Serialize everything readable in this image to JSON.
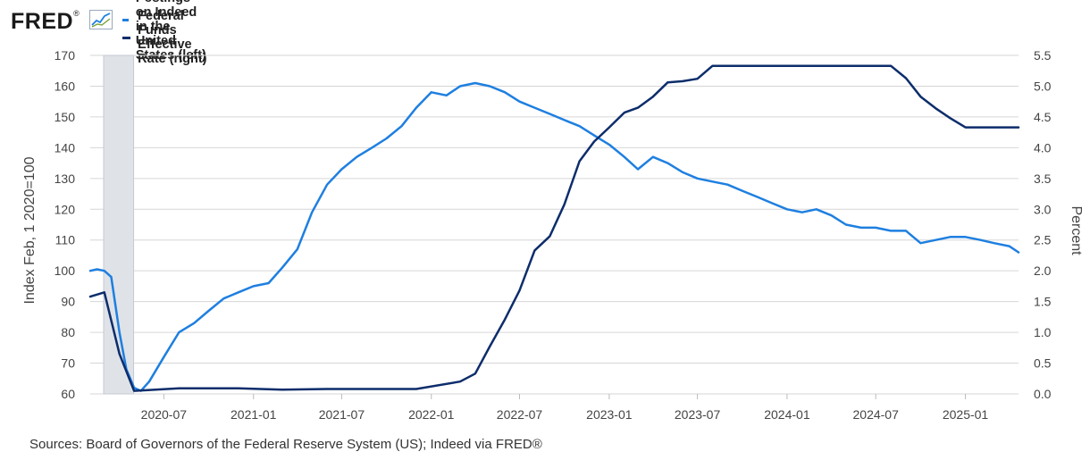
{
  "brand": {
    "logo_text": "FRED",
    "logo_mark": "®"
  },
  "legend": [
    {
      "label": "Job Postings on Indeed in the United States (left)",
      "color": "#1e7fe0"
    },
    {
      "label": "Federal Funds Effective Rate (right)",
      "color": "#0d2d6b"
    }
  ],
  "footer": {
    "sources": "Sources: Board of Governors of the Federal Reserve System (US); Indeed via FRED®"
  },
  "chart_data": {
    "type": "line",
    "x_tick_labels": [
      "2020-07",
      "2021-01",
      "2021-07",
      "2022-01",
      "2022-07",
      "2023-01",
      "2023-07",
      "2024-01",
      "2024-07",
      "2025-01"
    ],
    "x_range": [
      "2020-02-01",
      "2025-04-20"
    ],
    "y_left": {
      "label": "Index Feb, 1 2020=100",
      "range": [
        60,
        170
      ],
      "ticks": [
        60,
        70,
        80,
        90,
        100,
        110,
        120,
        130,
        140,
        150,
        160,
        170
      ]
    },
    "y_right": {
      "label": "Percent",
      "range": [
        0,
        5.5
      ],
      "ticks": [
        "0.0",
        "0.5",
        "1.0",
        "1.5",
        "2.0",
        "2.5",
        "3.0",
        "3.5",
        "4.0",
        "4.5",
        "5.0",
        "5.5"
      ]
    },
    "grid": true,
    "recession": {
      "start": "2020-02-01",
      "end": "2020-04-30"
    },
    "series": [
      {
        "name": "Job Postings on Indeed in the United States (left)",
        "axis": "left",
        "color": "#1e7fe0",
        "points": [
          [
            "2020-02-01",
            100
          ],
          [
            "2020-02-15",
            100.5
          ],
          [
            "2020-03-01",
            100
          ],
          [
            "2020-03-15",
            98
          ],
          [
            "2020-04-01",
            80
          ],
          [
            "2020-04-15",
            68
          ],
          [
            "2020-05-01",
            62
          ],
          [
            "2020-05-15",
            61
          ],
          [
            "2020-06-01",
            64
          ],
          [
            "2020-07-01",
            72
          ],
          [
            "2020-08-01",
            80
          ],
          [
            "2020-09-01",
            83
          ],
          [
            "2020-10-01",
            87
          ],
          [
            "2020-11-01",
            91
          ],
          [
            "2020-12-01",
            93
          ],
          [
            "2021-01-01",
            95
          ],
          [
            "2021-02-01",
            96
          ],
          [
            "2021-03-01",
            101
          ],
          [
            "2021-04-01",
            107
          ],
          [
            "2021-05-01",
            119
          ],
          [
            "2021-06-01",
            128
          ],
          [
            "2021-07-01",
            133
          ],
          [
            "2021-08-01",
            137
          ],
          [
            "2021-09-01",
            140
          ],
          [
            "2021-10-01",
            143
          ],
          [
            "2021-11-01",
            147
          ],
          [
            "2021-12-01",
            153
          ],
          [
            "2022-01-01",
            158
          ],
          [
            "2022-02-01",
            157
          ],
          [
            "2022-03-01",
            160
          ],
          [
            "2022-04-01",
            161
          ],
          [
            "2022-05-01",
            160
          ],
          [
            "2022-06-01",
            158
          ],
          [
            "2022-07-01",
            155
          ],
          [
            "2022-08-01",
            153
          ],
          [
            "2022-09-01",
            151
          ],
          [
            "2022-10-01",
            149
          ],
          [
            "2022-11-01",
            147
          ],
          [
            "2022-12-01",
            144
          ],
          [
            "2023-01-01",
            141
          ],
          [
            "2023-02-01",
            137
          ],
          [
            "2023-03-01",
            133
          ],
          [
            "2023-04-01",
            137
          ],
          [
            "2023-05-01",
            135
          ],
          [
            "2023-06-01",
            132
          ],
          [
            "2023-07-01",
            130
          ],
          [
            "2023-08-01",
            129
          ],
          [
            "2023-09-01",
            128
          ],
          [
            "2023-10-01",
            126
          ],
          [
            "2023-11-01",
            124
          ],
          [
            "2023-12-01",
            122
          ],
          [
            "2024-01-01",
            120
          ],
          [
            "2024-02-01",
            119
          ],
          [
            "2024-03-01",
            120
          ],
          [
            "2024-04-01",
            118
          ],
          [
            "2024-05-01",
            115
          ],
          [
            "2024-06-01",
            114
          ],
          [
            "2024-07-01",
            114
          ],
          [
            "2024-08-01",
            113
          ],
          [
            "2024-09-01",
            113
          ],
          [
            "2024-10-01",
            109
          ],
          [
            "2024-11-01",
            110
          ],
          [
            "2024-12-01",
            111
          ],
          [
            "2025-01-01",
            111
          ],
          [
            "2025-02-01",
            110
          ],
          [
            "2025-03-01",
            109
          ],
          [
            "2025-04-01",
            108
          ],
          [
            "2025-04-20",
            106
          ]
        ]
      },
      {
        "name": "Federal Funds Effective Rate (right)",
        "axis": "right",
        "color": "#0d2d6b",
        "points": [
          [
            "2020-02-01",
            1.58
          ],
          [
            "2020-03-01",
            1.65
          ],
          [
            "2020-04-01",
            0.65
          ],
          [
            "2020-05-01",
            0.05
          ],
          [
            "2020-08-01",
            0.09
          ],
          [
            "2020-12-01",
            0.09
          ],
          [
            "2021-03-01",
            0.07
          ],
          [
            "2021-06-01",
            0.08
          ],
          [
            "2021-09-01",
            0.08
          ],
          [
            "2021-12-01",
            0.08
          ],
          [
            "2022-03-01",
            0.2
          ],
          [
            "2022-04-01",
            0.33
          ],
          [
            "2022-05-01",
            0.77
          ],
          [
            "2022-06-01",
            1.21
          ],
          [
            "2022-07-01",
            1.68
          ],
          [
            "2022-08-01",
            2.33
          ],
          [
            "2022-09-01",
            2.56
          ],
          [
            "2022-10-01",
            3.08
          ],
          [
            "2022-11-01",
            3.78
          ],
          [
            "2022-12-01",
            4.1
          ],
          [
            "2023-01-01",
            4.33
          ],
          [
            "2023-02-01",
            4.57
          ],
          [
            "2023-03-01",
            4.65
          ],
          [
            "2023-04-01",
            4.83
          ],
          [
            "2023-05-01",
            5.06
          ],
          [
            "2023-06-01",
            5.08
          ],
          [
            "2023-07-01",
            5.12
          ],
          [
            "2023-08-01",
            5.33
          ],
          [
            "2024-08-01",
            5.33
          ],
          [
            "2024-09-01",
            5.13
          ],
          [
            "2024-10-01",
            4.83
          ],
          [
            "2024-11-01",
            4.64
          ],
          [
            "2024-12-01",
            4.48
          ],
          [
            "2025-01-01",
            4.33
          ],
          [
            "2025-04-20",
            4.33
          ]
        ]
      }
    ]
  }
}
